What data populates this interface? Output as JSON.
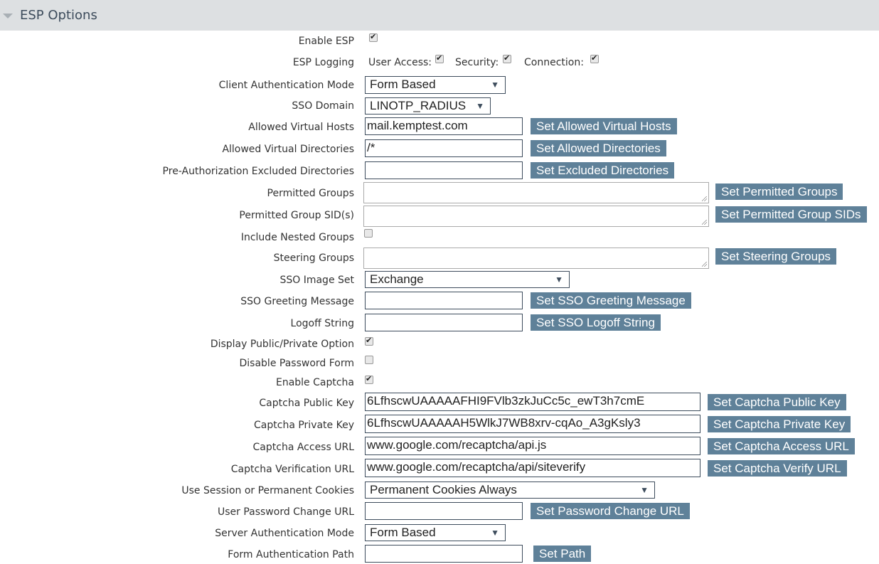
{
  "header": {
    "title": "ESP Options"
  },
  "rows": [
    {
      "label": "Enable ESP",
      "checked": true
    },
    {
      "label": "ESP Logging",
      "logging": [
        {
          "label": "User Access:",
          "checked": true
        },
        {
          "label": "Security:",
          "checked": true
        },
        {
          "label": "Connection:",
          "checked": true
        }
      ]
    },
    {
      "label": "Client Authentication Mode",
      "select": "Form Based"
    },
    {
      "label": "SSO Domain",
      "select": "LINOTP_RADIUS"
    },
    {
      "label": "Allowed Virtual Hosts",
      "input": "mail.kemptest.com",
      "button": "Set Allowed Virtual Hosts"
    },
    {
      "label": "Allowed Virtual Directories",
      "input": "/*",
      "button": "Set Allowed Directories"
    },
    {
      "label": "Pre-Authorization Excluded Directories",
      "input": "",
      "button": "Set Excluded Directories"
    },
    {
      "label": "Permitted Groups",
      "textarea": "",
      "button": "Set Permitted Groups"
    },
    {
      "label": "Permitted Group SID(s)",
      "textarea": "",
      "button": "Set Permitted Group SIDs"
    },
    {
      "label": "Include Nested Groups",
      "checked": false
    },
    {
      "label": "Steering Groups",
      "textarea": "",
      "button": "Set Steering Groups"
    },
    {
      "label": "SSO Image Set",
      "select": "Exchange"
    },
    {
      "label": "SSO Greeting Message",
      "input": "",
      "button": "Set SSO Greeting Message"
    },
    {
      "label": "Logoff String",
      "input": "",
      "button": "Set SSO Logoff String"
    },
    {
      "label": "Display Public/Private Option",
      "checked": true
    },
    {
      "label": "Disable Password Form",
      "checked": false
    },
    {
      "label": "Enable Captcha",
      "checked": true
    },
    {
      "label": "Captcha Public Key",
      "input": "6LfhscwUAAAAAFHI9FVlb3zkJuCc5c_ewT3h7cmE",
      "button": "Set Captcha Public Key"
    },
    {
      "label": "Captcha Private Key",
      "input": "6LfhscwUAAAAAH5WlkJ7WB8xrv-cqAo_A3gKsly3",
      "button": "Set Captcha Private Key"
    },
    {
      "label": "Captcha Access URL",
      "input": "www.google.com/recaptcha/api.js",
      "button": "Set Captcha Access URL"
    },
    {
      "label": "Captcha Verification URL",
      "input": "www.google.com/recaptcha/api/siteverify",
      "button": "Set Captcha Verify URL"
    },
    {
      "label": "Use Session or Permanent Cookies",
      "select": "Permanent Cookies Always"
    },
    {
      "label": "User Password Change URL",
      "input": "",
      "button": "Set Password Change URL"
    },
    {
      "label": "Server Authentication Mode",
      "select": "Form Based"
    },
    {
      "label": "Form Authentication Path",
      "input": "",
      "button": "Set Path"
    }
  ]
}
